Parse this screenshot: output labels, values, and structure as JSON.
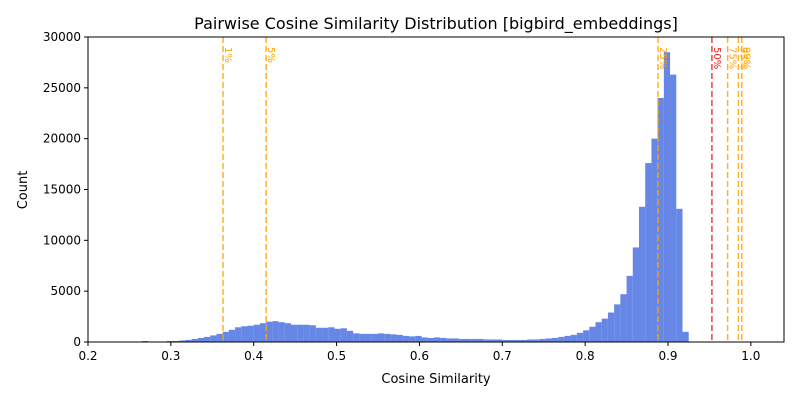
{
  "chart_data": {
    "type": "bar",
    "title": "Pairwise Cosine Similarity Distribution [bigbird_embeddings]",
    "xlabel": "Cosine Similarity",
    "ylabel": "Count",
    "xlim": [
      0.2,
      1.04
    ],
    "ylim": [
      0,
      30000
    ],
    "grid": false,
    "xticks": [
      "0.2",
      "0.3",
      "0.4",
      "0.5",
      "0.6",
      "0.7",
      "0.8",
      "0.9",
      "1.0"
    ],
    "yticks": [
      "0",
      "5000",
      "10000",
      "15000",
      "20000",
      "25000",
      "30000"
    ],
    "bar_color": "#4169e1",
    "bin_width": 0.0075,
    "bin_start": 0.25,
    "values": [
      0,
      0,
      100,
      0,
      0,
      50,
      100,
      100,
      150,
      200,
      300,
      400,
      500,
      650,
      800,
      1000,
      1200,
      1450,
      1550,
      1600,
      1700,
      1850,
      2000,
      2050,
      1950,
      1850,
      1700,
      1700,
      1700,
      1650,
      1400,
      1400,
      1450,
      1300,
      1350,
      1100,
      850,
      800,
      800,
      800,
      850,
      800,
      750,
      700,
      600,
      550,
      600,
      450,
      400,
      450,
      400,
      350,
      350,
      300,
      300,
      300,
      300,
      250,
      250,
      250,
      200,
      200,
      200,
      200,
      250,
      250,
      300,
      350,
      400,
      500,
      600,
      700,
      900,
      1150,
      1500,
      1950,
      2300,
      2900,
      3700,
      4700,
      6500,
      9300,
      13300,
      17600,
      20000,
      24000,
      28500,
      26300,
      13100,
      1000
    ],
    "percentile_lines": [
      {
        "label": "1%",
        "x": 0.363,
        "color": "#ffa500"
      },
      {
        "label": "5%",
        "x": 0.415,
        "color": "#ffa500"
      },
      {
        "label": "25%",
        "x": 0.888,
        "color": "#ffa500"
      },
      {
        "label": "50%",
        "x": 0.953,
        "color": "#e8221c"
      },
      {
        "label": "75%",
        "x": 0.972,
        "color": "#ffa500"
      },
      {
        "label": "95%",
        "x": 0.985,
        "color": "#ffa500"
      },
      {
        "label": "99%",
        "x": 0.989,
        "color": "#ffa500"
      }
    ]
  }
}
